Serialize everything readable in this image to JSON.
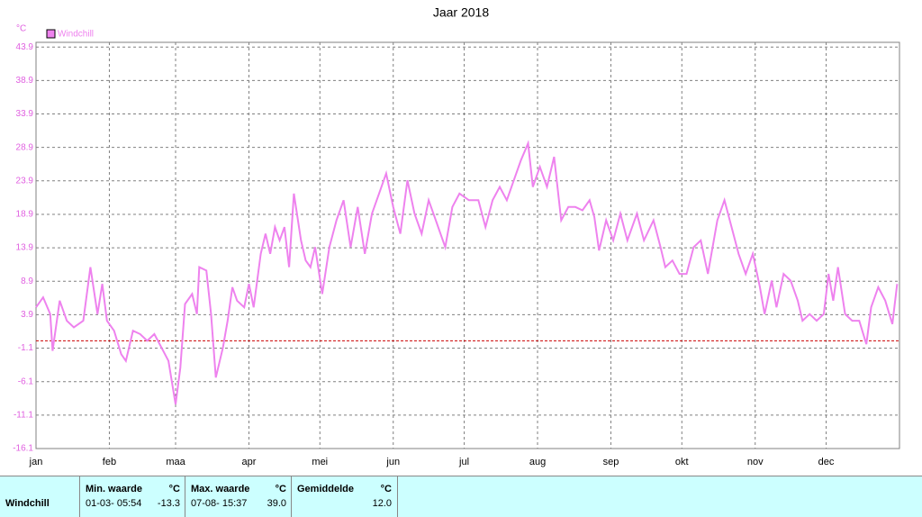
{
  "chart_data": {
    "type": "line",
    "title": "Jaar 2018",
    "y_unit": "°C",
    "legend_position": "top-left",
    "grid": true,
    "zero_line": {
      "value": 0,
      "color": "#cc0000"
    },
    "xlim": [
      0,
      365
    ],
    "xticks": [
      {
        "value": 0,
        "label": "jan"
      },
      {
        "value": 31,
        "label": "feb"
      },
      {
        "value": 59,
        "label": "maa"
      },
      {
        "value": 90,
        "label": "apr"
      },
      {
        "value": 120,
        "label": "mei"
      },
      {
        "value": 151,
        "label": "jun"
      },
      {
        "value": 181,
        "label": "jul"
      },
      {
        "value": 212,
        "label": "aug"
      },
      {
        "value": 243,
        "label": "sep"
      },
      {
        "value": 273,
        "label": "okt"
      },
      {
        "value": 304,
        "label": "nov"
      },
      {
        "value": 334,
        "label": "dec"
      }
    ],
    "ylim": [
      -16.1,
      44.6
    ],
    "yticks": [
      -16.1,
      -11.1,
      -6.1,
      -1.1,
      3.9,
      8.9,
      13.9,
      18.9,
      23.9,
      28.9,
      33.9,
      38.9,
      43.9
    ],
    "x": [
      0,
      3,
      6,
      7,
      10,
      13,
      16,
      20,
      23,
      26,
      28,
      30,
      33,
      36,
      38,
      41,
      44,
      47,
      50,
      53,
      56,
      59,
      61,
      63,
      66,
      68,
      69,
      72,
      74,
      76,
      79,
      81,
      83,
      85,
      88,
      90,
      92,
      95,
      97,
      99,
      101,
      103,
      105,
      107,
      109,
      112,
      114,
      116,
      118,
      121,
      124,
      127,
      130,
      133,
      136,
      139,
      142,
      145,
      148,
      151,
      154,
      157,
      160,
      163,
      166,
      169,
      173,
      176,
      179,
      183,
      187,
      190,
      193,
      196,
      199,
      202,
      205,
      208,
      210,
      213,
      216,
      219,
      222,
      225,
      228,
      231,
      234,
      236,
      238,
      241,
      244,
      247,
      250,
      254,
      257,
      261,
      264,
      266,
      269,
      272,
      275,
      278,
      281,
      284,
      288,
      291,
      294,
      297,
      300,
      303,
      306,
      308,
      311,
      313,
      316,
      319,
      322,
      324,
      327,
      330,
      333,
      335,
      337,
      339,
      342,
      345,
      348,
      351,
      353,
      356,
      359,
      362,
      364
    ],
    "series": [
      {
        "name": "Windchill",
        "color": "#ee82ee",
        "values": [
          5,
          6.5,
          4,
          -1.5,
          6,
          3,
          2,
          3,
          11,
          4,
          8.5,
          3,
          1.5,
          -2,
          -3,
          1.5,
          1,
          0,
          1,
          -1,
          -3,
          -9.5,
          -4,
          5.5,
          7,
          4,
          11,
          10.5,
          4,
          -5.5,
          -1,
          3,
          8,
          6,
          5,
          8.5,
          5,
          13,
          16,
          13,
          17,
          15,
          17,
          11,
          22,
          15,
          12,
          11,
          14,
          7,
          14,
          18,
          21,
          14,
          20,
          13,
          19,
          22,
          25,
          20,
          16,
          24,
          19,
          16,
          21,
          18,
          14,
          20,
          22,
          21,
          21,
          17,
          21,
          23,
          21,
          24,
          27,
          29.5,
          23,
          26,
          23,
          27.5,
          18,
          20,
          20,
          19.5,
          21,
          18.5,
          13.5,
          18,
          15,
          19,
          15,
          19,
          15,
          18,
          14,
          11,
          12,
          10,
          10,
          14,
          15,
          10,
          18,
          21,
          17,
          13,
          10,
          13,
          8,
          4,
          9,
          5,
          10,
          9,
          6,
          3,
          4,
          3,
          4,
          10,
          6,
          11,
          4,
          3,
          3,
          -0.5,
          5,
          8,
          6,
          2.5,
          8.5
        ]
      }
    ]
  },
  "table": {
    "row_label": "Windchill",
    "columns": [
      {
        "header": "Min. waarde",
        "unit": "°C",
        "time": "01-03- 05:54",
        "value": "-13.3"
      },
      {
        "header": "Max. waarde",
        "unit": "°C",
        "time": "07-08- 15:37",
        "value": "39.0"
      },
      {
        "header": "Gemiddelde",
        "unit": "°C",
        "value": "12.0"
      }
    ]
  }
}
